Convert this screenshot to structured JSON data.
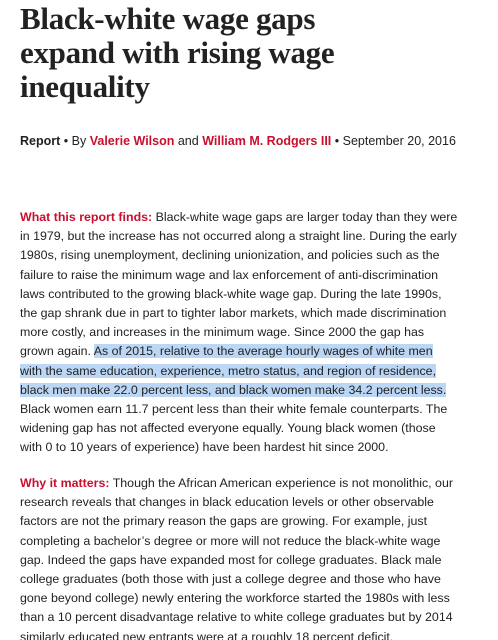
{
  "article": {
    "title": [
      "Black-white wage gaps",
      "expand with rising wage",
      "inequality"
    ],
    "byline": {
      "type": "Report",
      "separator": "•",
      "by": "By",
      "authors": [
        "Valerie Wilson",
        "William M. Rodgers III"
      ],
      "conjunction": "and",
      "date": "September 20, 2016"
    },
    "sections": [
      {
        "label": "What this report finds:",
        "lines": [
          "Black-white wage gaps are larger today than they were",
          "in 1979, but the increase has not occurred along a straight line. During the early",
          "1980s, rising unemployment, declining unionization, and policies such as the",
          "failure to raise the minimum wage and lax enforcement of anti-discrimination",
          "laws contributed to the growing black-white wage gap. During the late 1990s,",
          "the gap shrank due in part to tighter labor markets, which made discrimination",
          "more costly, and increases in the minimum wage. Since 2000 the gap has",
          "grown again.",
          "As of 2015, relative to the average hourly wages of white men",
          "with the same education, experience, metro status, and region of residence,",
          "black men make 22.0 percent less, and black women make 34.2 percent less.",
          "Black women earn 11.7 percent less than their white female counterparts. The",
          "widening gap has not affected everyone equally. Young black women (those",
          "with 0 to 10 years of experience) have been hardest hit since 2000."
        ]
      },
      {
        "label": "Why it matters:",
        "lines": [
          "Though the African American experience is not monolithic, our",
          "research reveals that changes in black education levels or other observable",
          "factors are not the primary reason the gaps are growing. For example, just",
          "completing a bachelor’s degree or more will not reduce the black-white wage",
          "gap. Indeed the gaps have expanded most for college graduates. Black male",
          "college graduates (both those with just a college degree and those who have",
          "gone beyond college) newly entering the workforce started the 1980s with less",
          "than a 10 percent disadvantage relative to white college graduates but by 2014",
          "similarly educated new entrants were at a roughly 18 percent deficit."
        ]
      }
    ]
  }
}
